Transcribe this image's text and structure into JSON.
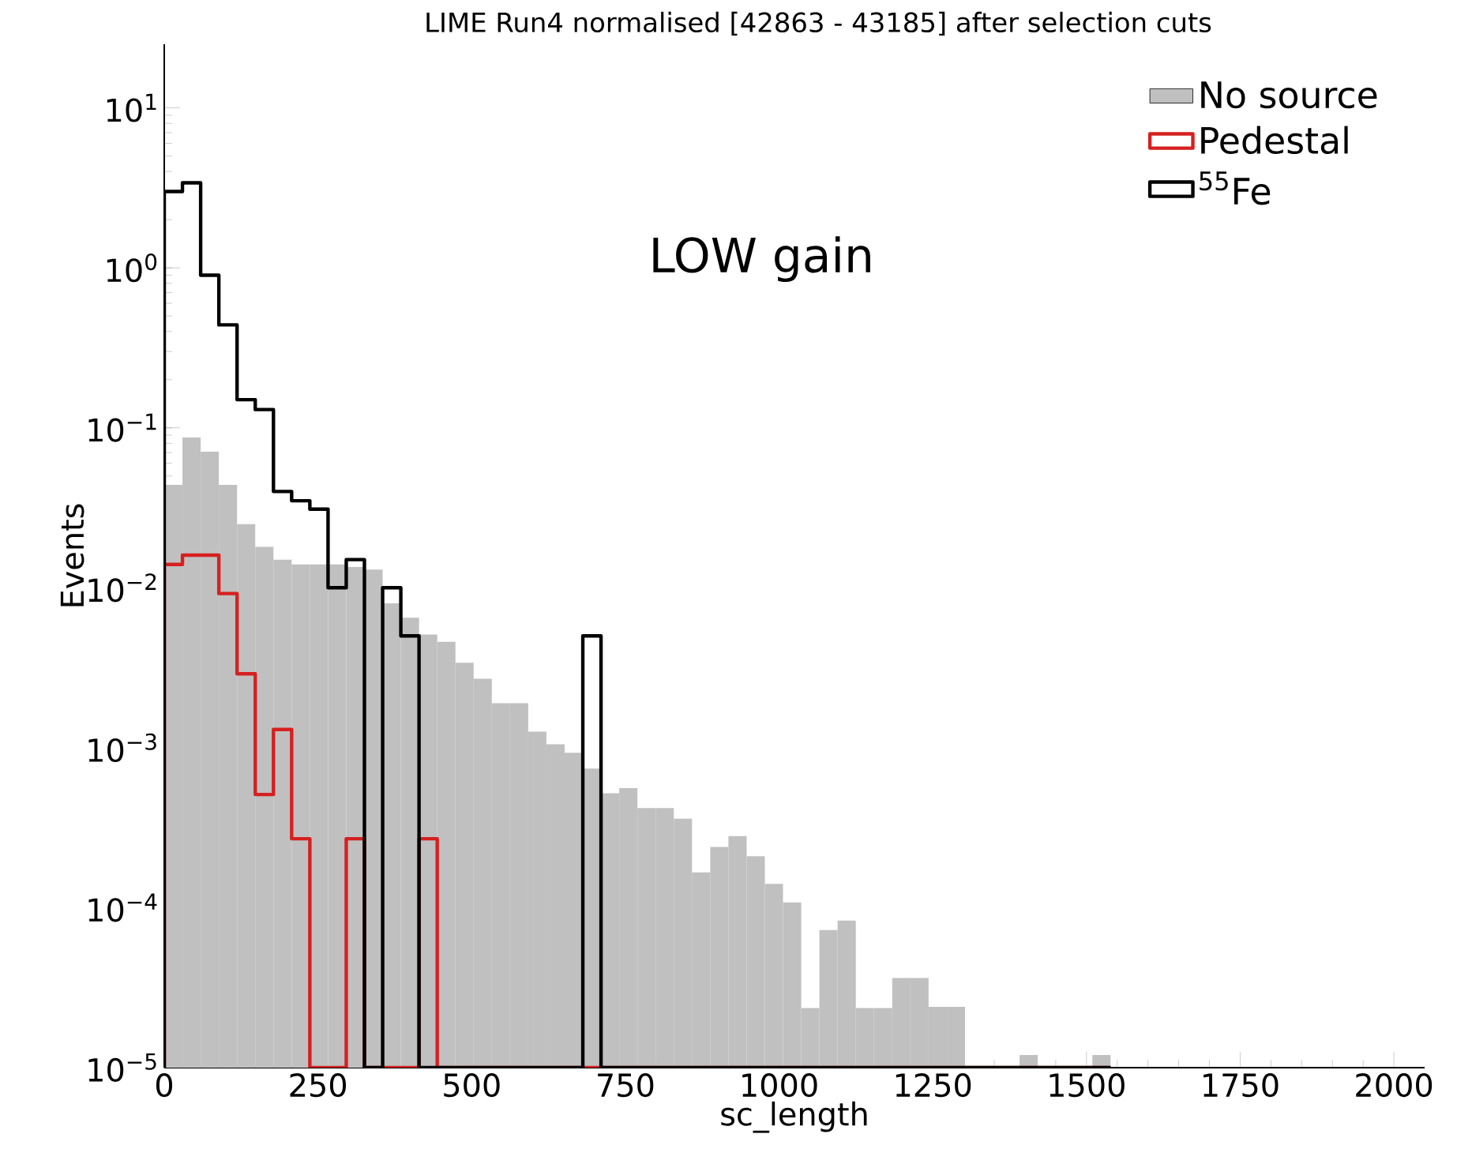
{
  "chart_data": {
    "type": "histogram",
    "title": "LIME Run4 normalised [42863 - 43185] after selection cuts",
    "xlabel": "sc_length",
    "ylabel": "Events",
    "annotations": [
      "LOW gain"
    ],
    "bins": [
      0,
      29.6,
      59.2,
      88.8,
      118.4,
      148,
      177.6,
      207.2,
      236.8,
      266.4,
      296,
      325.6,
      355.2,
      384.8,
      414.4,
      444,
      473.6,
      503.2,
      532.8,
      562.4,
      592,
      621.6,
      651.2,
      680.8,
      710.4,
      740,
      769.6,
      799.2,
      828.8,
      858.4,
      888,
      917.6,
      947.2,
      976.8,
      1006.4,
      1036,
      1065.6,
      1095.2,
      1124.8,
      1154.4,
      1184,
      1213.6,
      1243.2,
      1272.8,
      1302.4,
      1332,
      1361.6,
      1391.2,
      1420.8,
      1450.4,
      1480,
      1509.6,
      1539.2
    ],
    "series": [
      {
        "name": "No source",
        "color": "#c0c0c0",
        "values": [
          0.044,
          0.087,
          0.071,
          0.044,
          0.025,
          0.018,
          0.015,
          0.014,
          0.014,
          0.014,
          0.0135,
          0.013,
          0.008,
          0.0065,
          0.0051,
          0.0046,
          0.0034,
          0.0027,
          0.0019,
          0.0019,
          0.00126,
          0.00105,
          0.00093,
          0.00074,
          0.00052,
          0.00056,
          0.00042,
          0.00042,
          0.00036,
          0.000166,
          0.00024,
          0.00028,
          0.00021,
          0.000141,
          0.000108,
          2.36e-05,
          7.25e-05,
          8.3e-05,
          2.36e-05,
          2.36e-05,
          3.63e-05,
          3.63e-05,
          2.4e-05,
          2.4e-05,
          null,
          null,
          null,
          1.2e-05,
          null,
          null,
          null,
          1.2e-05
        ]
      },
      {
        "name": "Pedestal",
        "line_style": "solid",
        "color": "#d62020",
        "values": [
          0.014,
          0.016,
          0.016,
          0.0092,
          0.0029,
          0.00051,
          0.0013,
          0.00027,
          null,
          null,
          0.00027,
          null,
          null,
          null,
          0.00027,
          null,
          null,
          null,
          null,
          null,
          null,
          null,
          null,
          null,
          null,
          null,
          null,
          null,
          null,
          null,
          null,
          null,
          null,
          null,
          null,
          null,
          null,
          null,
          null,
          null,
          null,
          null,
          null,
          null,
          null,
          null,
          null,
          null,
          null,
          null,
          null,
          null
        ]
      },
      {
        "name": "$^{55}$Fe",
        "line_style": "solid",
        "color": "#000000",
        "values": [
          3.0,
          3.4,
          0.9,
          0.44,
          0.15,
          0.13,
          0.04,
          0.035,
          0.031,
          0.01,
          0.015,
          null,
          0.01,
          0.005,
          null,
          null,
          null,
          null,
          null,
          null,
          null,
          null,
          null,
          0.005,
          null,
          null,
          null,
          null,
          null,
          null,
          null,
          null,
          null,
          null,
          null,
          null,
          null,
          null,
          null,
          null,
          null,
          null,
          null,
          null,
          null,
          null,
          null,
          null,
          null,
          null,
          null,
          null
        ]
      }
    ],
    "xlim": [
      0,
      2050
    ],
    "xticks": [
      0,
      250,
      500,
      750,
      1000,
      1250,
      1500,
      1750,
      2000
    ],
    "ylim": [
      1e-05,
      25
    ],
    "yticks": [
      {
        "value": 1e-05,
        "label": "10$^{−5}$"
      },
      {
        "value": 0.0001,
        "label": "10$^{−4}$"
      },
      {
        "value": 0.001,
        "label": "10$^{−3}$"
      },
      {
        "value": 0.01,
        "label": "10$^{−2}$"
      },
      {
        "value": 0.1,
        "label": "10$^{−1}$"
      },
      {
        "value": 1,
        "label": "10$^{0}$"
      },
      {
        "value": 10,
        "label": "10$^{1}$"
      }
    ],
    "log": "y",
    "legend": "top right"
  }
}
